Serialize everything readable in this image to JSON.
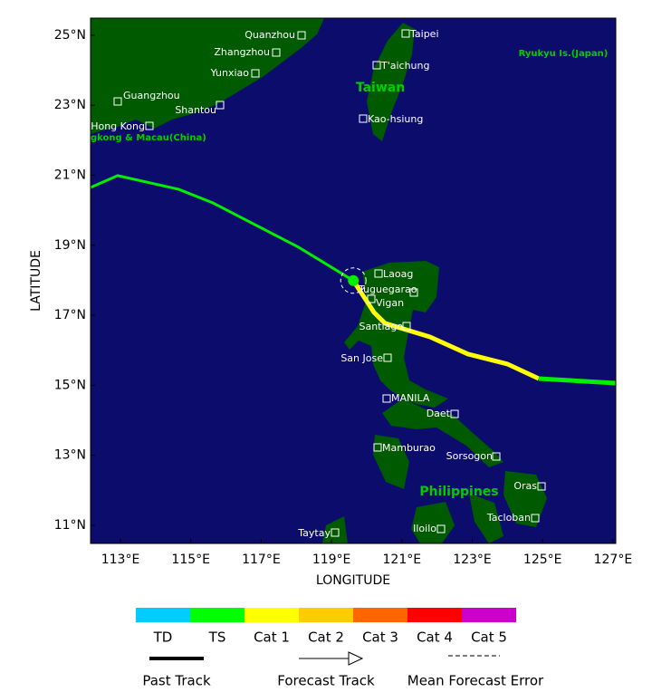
{
  "map": {
    "xlabel": "LONGITUDE",
    "ylabel": "LATITUDE",
    "xlim": [
      112.15,
      127.08
    ],
    "ylim": [
      10.48,
      25.49
    ],
    "xticks": [
      {
        "value": 113,
        "label": "113°E"
      },
      {
        "value": 115,
        "label": "115°E"
      },
      {
        "value": 117,
        "label": "117°E"
      },
      {
        "value": 119,
        "label": "119°E"
      },
      {
        "value": 121,
        "label": "121°E"
      },
      {
        "value": 123,
        "label": "123°E"
      },
      {
        "value": 125,
        "label": "125°E"
      },
      {
        "value": 127,
        "label": "127°E"
      }
    ],
    "yticks": [
      {
        "value": 11,
        "label": "11°N"
      },
      {
        "value": 13,
        "label": "13°N"
      },
      {
        "value": 15,
        "label": "15°N"
      },
      {
        "value": 17,
        "label": "17°N"
      },
      {
        "value": 19,
        "label": "19°N"
      },
      {
        "value": 21,
        "label": "21°N"
      },
      {
        "value": 23,
        "label": "23°N"
      },
      {
        "value": 25,
        "label": "25°N"
      }
    ],
    "track": [
      {
        "color": "#00ee00",
        "lon": [
          112.15,
          112.92,
          114.65,
          115.63,
          118.07,
          119.62
        ],
        "lat": [
          20.65,
          20.99,
          20.6,
          20.21,
          18.94,
          17.99
        ]
      },
      {
        "color": "#ffff00",
        "lon": [
          119.62,
          120.21,
          120.52,
          121.8,
          122.88,
          123.99,
          124.89
        ],
        "lat": [
          17.99,
          17.08,
          16.77,
          16.38,
          15.89,
          15.61,
          15.19
        ]
      },
      {
        "color": "#00ee00",
        "lon": [
          124.89,
          127.08
        ],
        "lat": [
          15.19,
          15.06
        ]
      }
    ],
    "position": {
      "color": "#00ee00",
      "lon": 119.62,
      "lat": 17.99
    },
    "cities": [
      "Quanzhou",
      "Zhangzhou",
      "Yunxiao",
      "Guangzhou",
      "Shantou",
      "Hong Kong",
      "Taipei",
      "T'aichung",
      "Kao-hsiung",
      "Laoag",
      "Tuguegarao",
      "Vigan",
      "Santiago",
      "San Jose",
      "MANILA",
      "Daet",
      "Mamburao",
      "Sorsogon",
      "Oras",
      "Tacloban",
      "Taytay",
      "Iloilo"
    ],
    "regions": [
      "Taiwan",
      "Ryukyu Is.(Japan)",
      "gkong & Macau(China)",
      "Philippines"
    ]
  },
  "legend": {
    "categories": [
      {
        "label": "TD",
        "color": "#00ccff"
      },
      {
        "label": "TS",
        "color": "#00ff00"
      },
      {
        "label": "Cat 1",
        "color": "#ffff00"
      },
      {
        "label": "Cat 2",
        "color": "#ffcc00"
      },
      {
        "label": "Cat 3",
        "color": "#ff6600"
      },
      {
        "label": "Cat 4",
        "color": "#ff0000"
      },
      {
        "label": "Cat 5",
        "color": "#cc00cc"
      }
    ],
    "past_track": "Past Track",
    "forecast_track": "Forecast Track",
    "mean_error": "Mean Forecast Error"
  }
}
